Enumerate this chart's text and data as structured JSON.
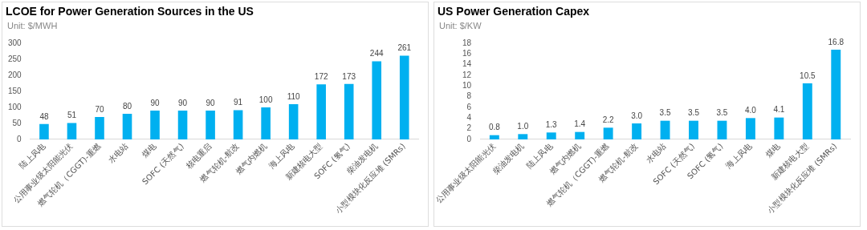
{
  "chart_data": [
    {
      "type": "bar",
      "title": "LCOE for Power Generation Sources in the US",
      "ylabel": "Unit: $/MWH",
      "categories": [
        "陆上风电",
        "公用事业级太阳能光伏",
        "燃气轮机（CGGT)-重燃",
        "水电站",
        "煤电",
        "SOFC (天然气)",
        "核电重启",
        "燃气轮机-航改",
        "燃气内燃机",
        "海上风电",
        "新建核电大型",
        "SOFC (氢气)",
        "柴油发电机",
        "小型模块化反应堆 (SMRs)"
      ],
      "values": [
        48,
        51,
        70,
        80,
        90,
        90,
        90,
        91,
        100,
        110,
        172,
        173,
        244,
        261
      ],
      "color": "#00b0f0",
      "ylim": [
        0,
        300
      ],
      "yticks": [
        0,
        50,
        100,
        150,
        200,
        250,
        300
      ],
      "data_labels": true,
      "grid": false,
      "legend": false
    },
    {
      "type": "bar",
      "title": "US Power Generation Capex",
      "ylabel": "Unit: $/KW",
      "categories": [
        "公用事业级太阳能光伏",
        "柴油发电机",
        "陆上风电",
        "燃气内燃机",
        "燃气轮机（CGGT)-重燃",
        "燃气轮机-航改",
        "水电站",
        "SOFC (天然气)",
        "SOFC (氢气)",
        "海上风电",
        "煤电",
        "新建核电大型",
        "小型模块化反应堆 (SMRs)"
      ],
      "values": [
        0.8,
        1.0,
        1.3,
        1.4,
        2.2,
        3.0,
        3.5,
        3.5,
        3.5,
        4.0,
        4.1,
        10.5,
        16.8
      ],
      "value_labels": [
        "0.8",
        "1.0",
        "1.3",
        "1.4",
        "2.2",
        "3.0",
        "3.5",
        "3.5",
        "3.5",
        "4.0",
        "4.1",
        "10.5",
        "16.8"
      ],
      "color": "#00b0f0",
      "ylim": [
        0,
        18
      ],
      "yticks": [
        0,
        2,
        4,
        6,
        8,
        10,
        12,
        14,
        16,
        18
      ],
      "grid": false,
      "legend": false
    }
  ]
}
